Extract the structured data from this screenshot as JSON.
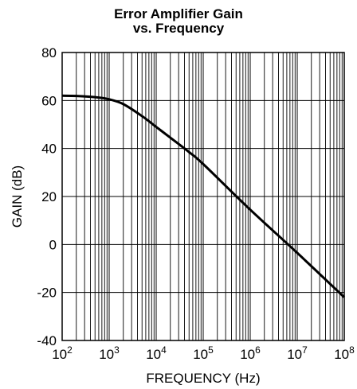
{
  "chart_data": {
    "type": "line",
    "title_line1": "Error Amplifier Gain",
    "title_line2": "vs. Frequency",
    "xlabel": "FREQUENCY (Hz)",
    "ylabel": "GAIN (dB)",
    "x_scale": "log",
    "xlim": [
      100,
      100000000
    ],
    "ylim": [
      -40,
      80
    ],
    "grid": true,
    "x_ticks": [
      {
        "base": "10",
        "exp": "2"
      },
      {
        "base": "10",
        "exp": "3"
      },
      {
        "base": "10",
        "exp": "4"
      },
      {
        "base": "10",
        "exp": "5"
      },
      {
        "base": "10",
        "exp": "6"
      },
      {
        "base": "10",
        "exp": "7"
      },
      {
        "base": "10",
        "exp": "8"
      }
    ],
    "y_ticks": [
      "80",
      "60",
      "40",
      "20",
      "0",
      "-20",
      "-40"
    ],
    "series": [
      {
        "color": "#000000",
        "x": [
          100,
          200,
          500,
          1000,
          2000,
          5000,
          10000,
          20000,
          50000,
          100000,
          1000000,
          10000000,
          100000000
        ],
        "y": [
          62,
          61.9,
          61.4,
          60.5,
          58.5,
          53.5,
          49,
          44.5,
          38.5,
          33.5,
          14.5,
          -3.5,
          -22
        ]
      }
    ]
  }
}
